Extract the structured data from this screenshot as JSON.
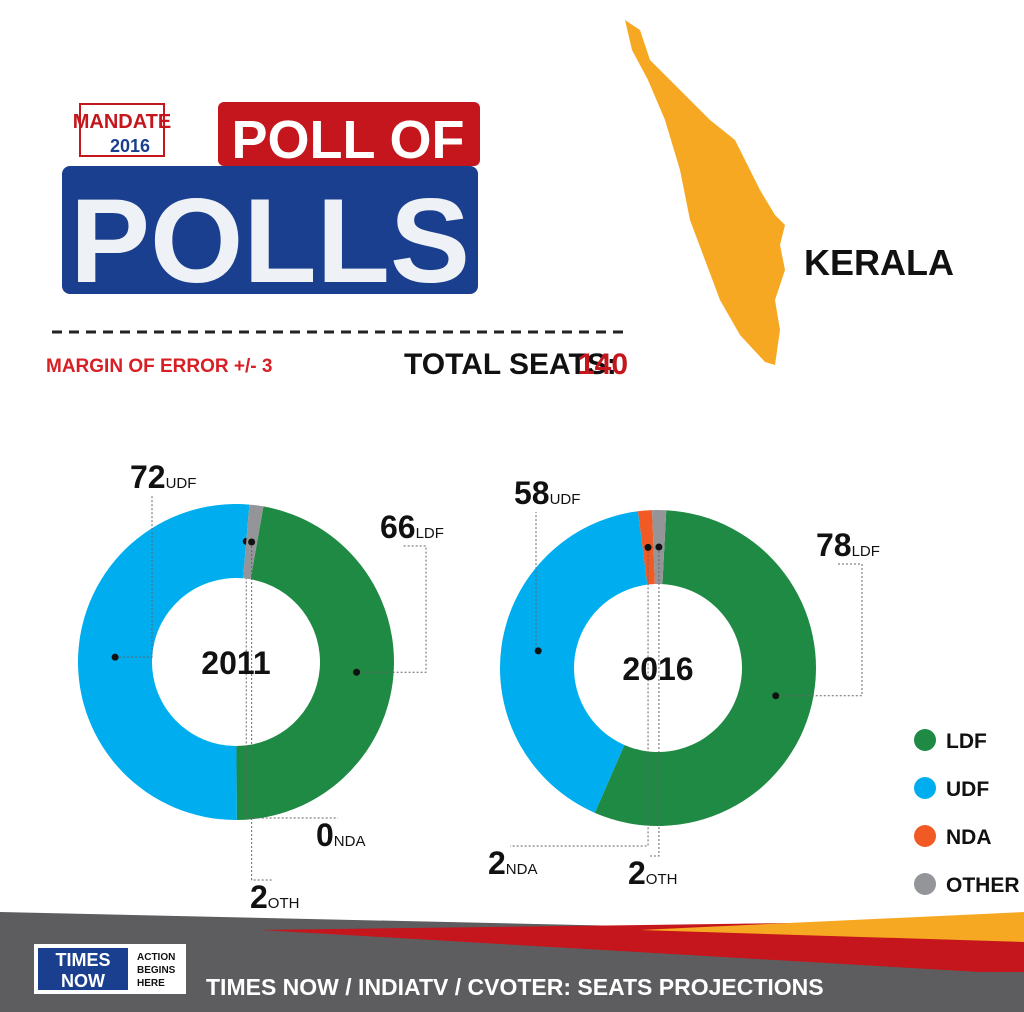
{
  "header": {
    "logo_top": "MANDATE",
    "logo_year": "2016",
    "title_line1": "POLL OF",
    "title_line2": "POLLS"
  },
  "state": "KERALA",
  "margin_of_error": "MARGIN OF ERROR +/- 3",
  "total_seats_label": "TOTAL SEATS:",
  "total_seats": 140,
  "chart_data": [
    {
      "type": "pie",
      "title": "2011",
      "categories": [
        "LDF",
        "UDF",
        "NDA",
        "OTH"
      ],
      "values": [
        66,
        72,
        0,
        2
      ],
      "colors": [
        "#1f8a44",
        "#00aeef",
        "#f15a24",
        "#939598"
      ]
    },
    {
      "type": "pie",
      "title": "2016",
      "categories": [
        "LDF",
        "UDF",
        "NDA",
        "OTH"
      ],
      "values": [
        78,
        58,
        2,
        2
      ],
      "colors": [
        "#1f8a44",
        "#00aeef",
        "#f15a24",
        "#939598"
      ]
    }
  ],
  "legend": {
    "items": [
      {
        "label": "LDF",
        "color": "#1f8a44"
      },
      {
        "label": "UDF",
        "color": "#00aeef"
      },
      {
        "label": "NDA",
        "color": "#f15a24"
      },
      {
        "label": "OTHER",
        "color": "#939598"
      }
    ]
  },
  "footer": {
    "brand_top": "TIMES",
    "brand_bottom": "NOW",
    "tagline": [
      "ACTION",
      "BEGINS",
      "HERE"
    ],
    "source": "TIMES NOW / INDIATV / CVOTER: SEATS PROJECTIONS"
  }
}
